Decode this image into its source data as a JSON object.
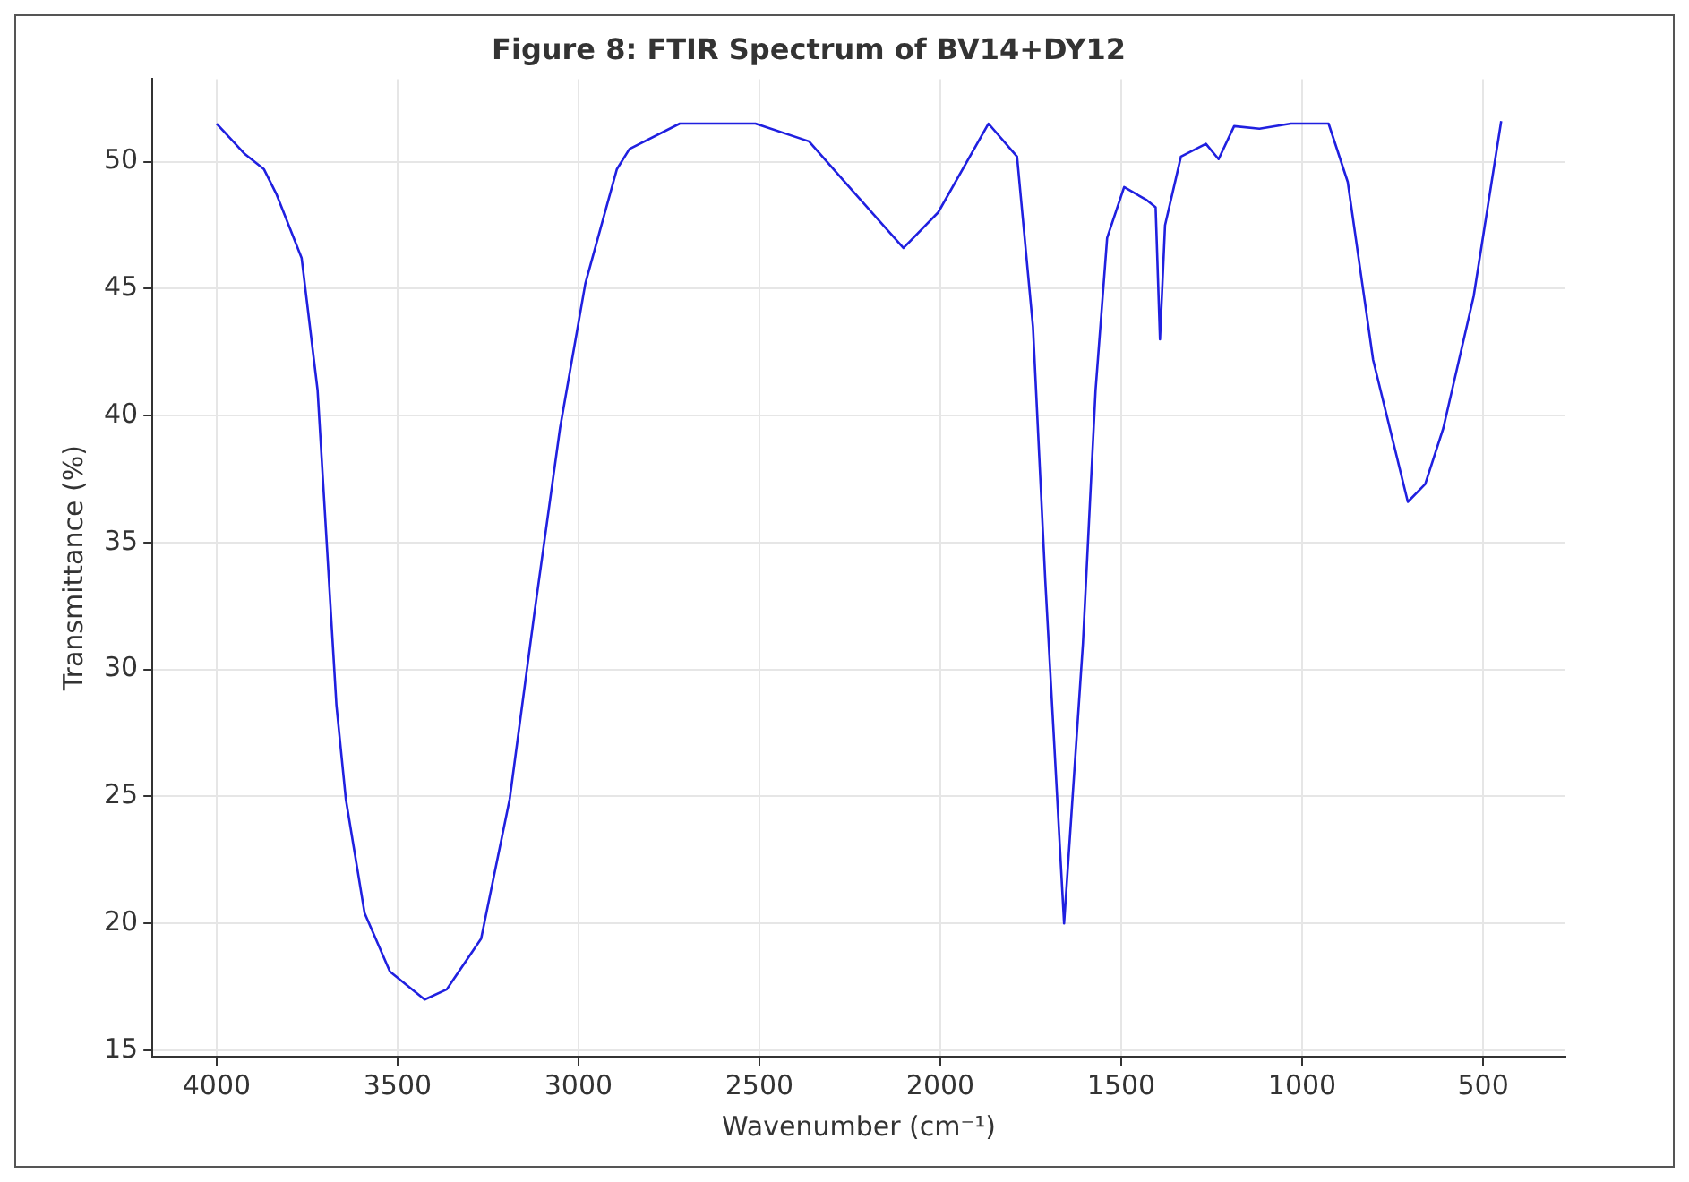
{
  "chart_data": {
    "type": "line",
    "title": "Figure 8: FTIR Spectrum of BV14+DY12",
    "xlabel": "Wavenumber (cm⁻¹)",
    "ylabel": "Transmittance (%)",
    "x": [
      4000,
      3922,
      3869,
      3834,
      3765,
      3721,
      3695,
      3669,
      3643,
      3591,
      3521,
      3425,
      3364,
      3269,
      3190,
      3121,
      3051,
      2981,
      2894,
      2859,
      2720,
      2511,
      2363,
      2233,
      2102,
      2006,
      1867,
      1788,
      1744,
      1710,
      1658,
      1606,
      1571,
      1539,
      1492,
      1431,
      1405,
      1393,
      1379,
      1335,
      1266,
      1231,
      1188,
      1118,
      1031,
      927,
      874,
      804,
      708,
      660,
      610,
      526,
      450
    ],
    "series": [
      {
        "color": "#2020e0",
        "values": [
          51.5,
          50.3,
          49.7,
          48.7,
          46.2,
          41.0,
          34.8,
          28.6,
          24.9,
          20.4,
          18.1,
          17.0,
          17.4,
          19.4,
          24.9,
          32.3,
          39.5,
          45.2,
          49.7,
          50.5,
          51.5,
          51.5,
          50.8,
          48.7,
          46.6,
          48.0,
          51.5,
          50.2,
          43.5,
          33.5,
          20.0,
          31.0,
          41.0,
          47.0,
          49.0,
          48.5,
          48.2,
          43.0,
          47.5,
          50.2,
          50.7,
          50.1,
          51.4,
          51.3,
          51.5,
          51.5,
          49.2,
          42.2,
          36.6,
          37.3,
          39.5,
          44.7,
          51.6
        ]
      }
    ],
    "xlim": [
      4177.5,
      272.5
    ],
    "ylim": [
      14.75,
      53.25
    ],
    "xticks": [
      4000,
      3500,
      3000,
      2500,
      2000,
      1500,
      1000,
      500
    ],
    "yticks": [
      15,
      20,
      25,
      30,
      35,
      40,
      45,
      50
    ],
    "grid": true,
    "legend": false,
    "marker": "none",
    "line_style": "solid"
  }
}
